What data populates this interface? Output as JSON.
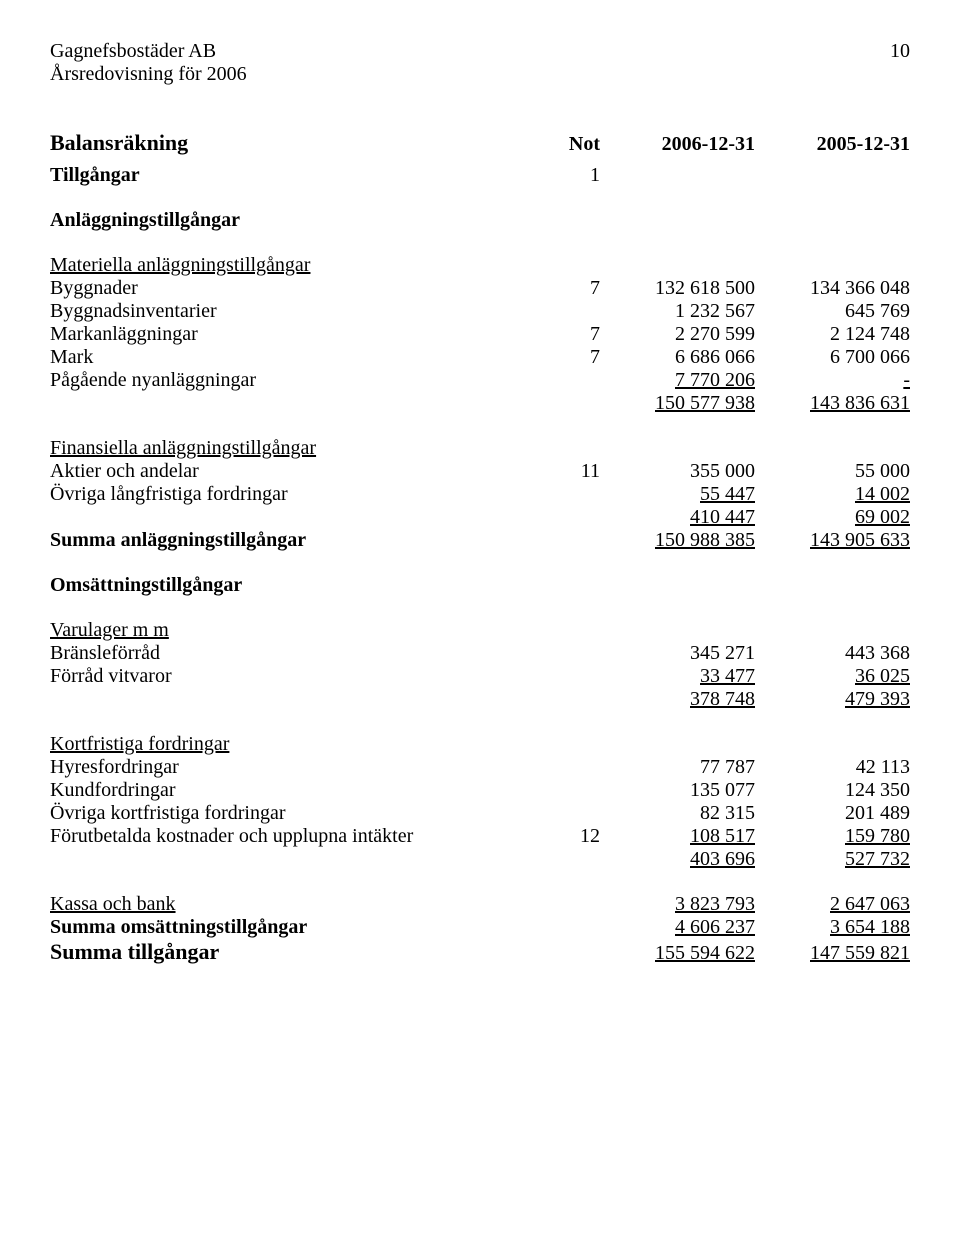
{
  "header": {
    "company": "Gagnefsbostäder AB",
    "subtitle": "Årsredovisning för 2006",
    "page_number": "10"
  },
  "title": "Balansräkning",
  "col_headers": {
    "note": "Not",
    "c1": "2006-12-31",
    "c2": "2005-12-31"
  },
  "tillgangar": {
    "label": "Tillgångar",
    "note": "1"
  },
  "anlaggning_heading": "Anläggningstillgångar",
  "materiella_heading": "Materiella anläggningstillgångar",
  "materiella": [
    {
      "label": "Byggnader",
      "note": "7",
      "c1": "132 618 500",
      "c2": "134 366 048"
    },
    {
      "label": "Byggnadsinventarier",
      "note": "",
      "c1": "1 232 567",
      "c2": "645 769"
    },
    {
      "label": "Markanläggningar",
      "note": "7",
      "c1": "2 270 599",
      "c2": "2 124 748"
    },
    {
      "label": "Mark",
      "note": "7",
      "c1": "6 686 066",
      "c2": "6 700 066"
    }
  ],
  "pagaende": {
    "label": "Pågående nyanläggningar",
    "note": "",
    "c1": "7 770 206",
    "c2": "-"
  },
  "materiella_sum": {
    "c1": "150 577 938",
    "c2": "143 836 631"
  },
  "finansiella_heading": "Finansiella anläggningstillgångar",
  "aktier": {
    "label": "Aktier och andelar",
    "note": "11",
    "c1": "355 000",
    "c2": "55 000"
  },
  "ovriga_lang": {
    "label": "Övriga långfristiga fordringar",
    "c1": "55 447",
    "c2": "14 002"
  },
  "finansiella_sum": {
    "c1": "410 447",
    "c2": "69 002"
  },
  "summa_anlaggning": {
    "label": "Summa anläggningstillgångar",
    "c1": "150 988 385",
    "c2": "143 905 633"
  },
  "omsattning_heading": "Omsättningstillgångar",
  "varulager_heading": "Varulager m m",
  "bransle": {
    "label": "Bränsleförråd",
    "c1": "345 271",
    "c2": "443 368"
  },
  "forrad": {
    "label": "Förråd vitvaror",
    "c1": "33 477",
    "c2": "36 025"
  },
  "varulager_sum": {
    "c1": "378 748",
    "c2": "479 393"
  },
  "kortfristiga_heading": "Kortfristiga fordringar",
  "hyres": {
    "label": "Hyresfordringar",
    "c1": "77 787",
    "c2": "42 113"
  },
  "kund": {
    "label": "Kundfordringar",
    "c1": "135 077",
    "c2": "124 350"
  },
  "ovriga_kort": {
    "label": "Övriga kortfristiga fordringar",
    "c1": "82 315",
    "c2": "201 489"
  },
  "forutbetalda": {
    "label": "Förutbetalda kostnader och upplupna intäkter",
    "note": "12",
    "c1": "108 517",
    "c2": "159 780"
  },
  "kortfristiga_sum": {
    "c1": "403 696",
    "c2": "527 732"
  },
  "kassa": {
    "label": "Kassa och bank",
    "c1": "3 823 793",
    "c2": "2 647 063"
  },
  "summa_omsattning": {
    "label": "Summa omsättningstillgångar",
    "c1": "4 606 237",
    "c2": "3 654 188"
  },
  "summa_tillgangar": {
    "label": "Summa tillgångar",
    "c1": "155 594 622",
    "c2": "147 559 821"
  }
}
